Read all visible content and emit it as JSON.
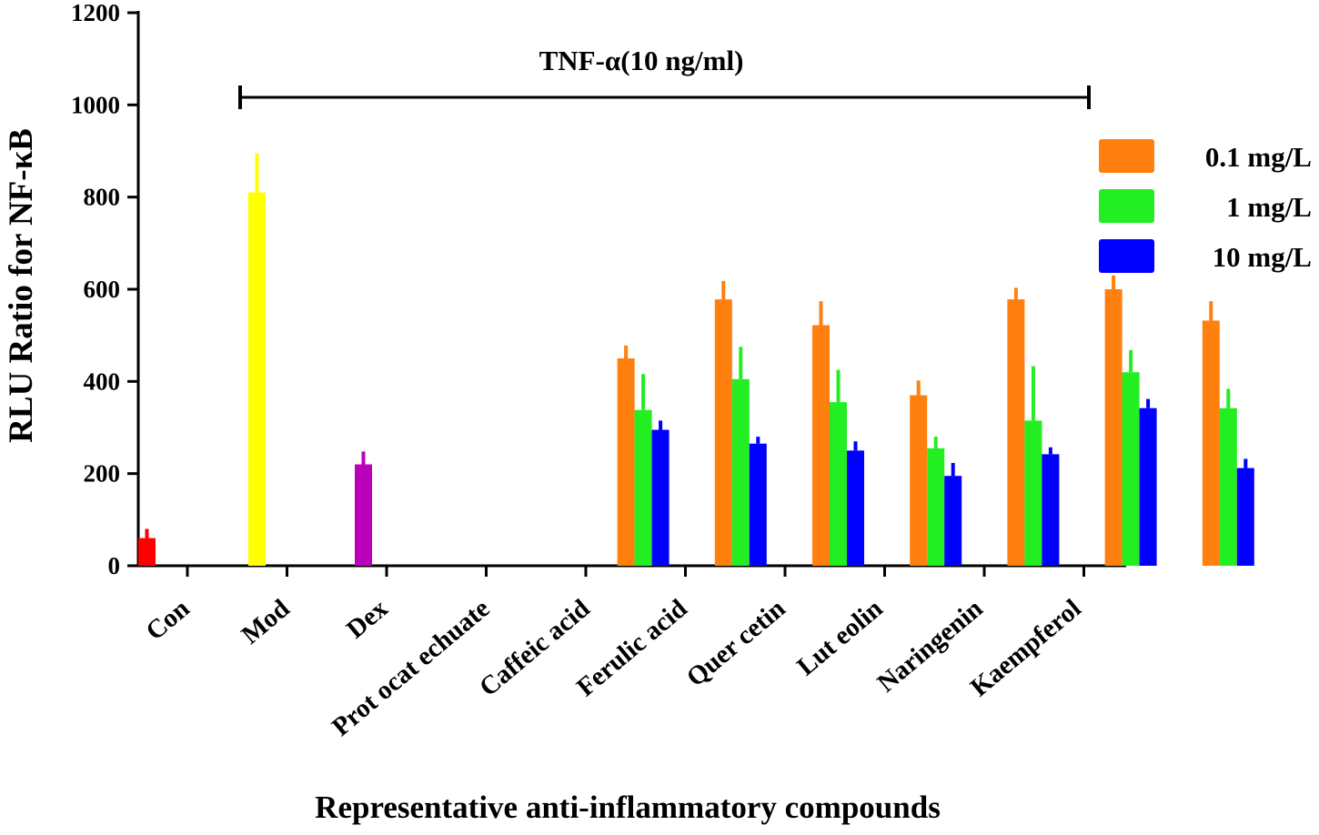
{
  "chart_data": {
    "type": "bar",
    "title": "",
    "annotation": "TNF-α(10 ng/ml)",
    "xlabel": "Representative anti-inflammatory compounds",
    "ylabel": "RLU Ratio for NF-κB",
    "ylim": [
      0,
      1200
    ],
    "yticks": [
      "0",
      "200",
      "400",
      "600",
      "800",
      "1000",
      "1200"
    ],
    "ytick_values": [
      0,
      200,
      400,
      600,
      800,
      1000,
      1200
    ],
    "categories": [
      "Con",
      "Mod",
      "Dex",
      "Protocatechuate",
      "Caffeic acid",
      "Ferulic acid",
      "Quercetin",
      "Luteolin",
      "Naringenin",
      "Kaempferol"
    ],
    "category_labels": [
      "Con",
      "Mod",
      "Dex",
      "Prot ocat echuate",
      "Caffeic acid",
      "Ferulic acid",
      "Quer cetin",
      "Lut eolin",
      "Naringenin",
      "Kaempferol"
    ],
    "controls": [
      {
        "category": "Con",
        "value": 60,
        "error": 20,
        "color": "#ff0000"
      },
      {
        "category": "Mod",
        "value": 810,
        "error": 85,
        "color": "#ffff00"
      },
      {
        "category": "Dex",
        "value": 220,
        "error": 28,
        "color": "#bb00bb"
      }
    ],
    "series": [
      {
        "name": "0.1 mg/L",
        "color": "#ff7f0f",
        "values": [
          null,
          null,
          null,
          450,
          578,
          522,
          370,
          578,
          600,
          532
        ],
        "errors": [
          null,
          null,
          null,
          28,
          40,
          52,
          32,
          25,
          30,
          42
        ]
      },
      {
        "name": "1 mg/L",
        "color": "#22ee22",
        "values": [
          null,
          null,
          null,
          338,
          405,
          355,
          255,
          315,
          420,
          342
        ],
        "errors": [
          null,
          null,
          null,
          78,
          70,
          70,
          25,
          118,
          48,
          42
        ]
      },
      {
        "name": "10 mg/L",
        "color": "#0000ff",
        "values": [
          null,
          null,
          null,
          295,
          265,
          250,
          195,
          242,
          342,
          212
        ],
        "errors": [
          null,
          null,
          null,
          20,
          15,
          20,
          28,
          15,
          20,
          20
        ]
      }
    ],
    "legend_position": "top-right",
    "legend_labels": [
      "0.1 mg/L",
      "1 mg/L",
      "10  mg/L"
    ]
  }
}
